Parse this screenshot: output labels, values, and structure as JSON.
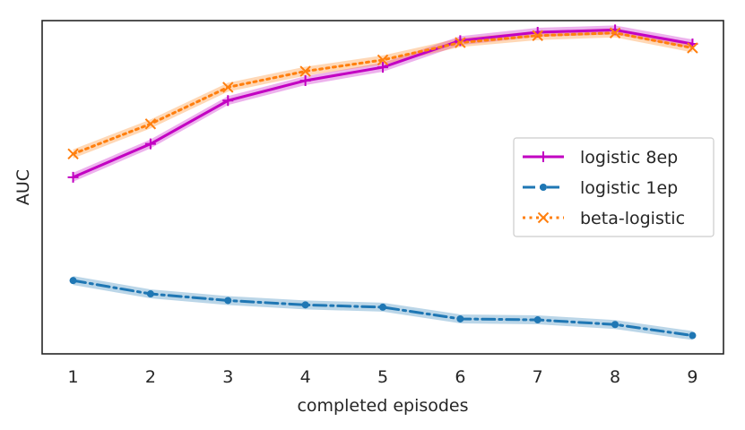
{
  "chart_data": {
    "type": "line",
    "title": "",
    "xlabel": "completed episodes",
    "ylabel": "AUC",
    "x": [
      1,
      2,
      3,
      4,
      5,
      6,
      7,
      8,
      9
    ],
    "xlim": [
      0.6,
      9.4
    ],
    "ylim": [
      0,
      1
    ],
    "y_ticks_shown": false,
    "grid": false,
    "legend_position": "center-right",
    "series": [
      {
        "name": "logistic 8ep",
        "color": "#c200c2",
        "linestyle": "solid",
        "marker": "plus",
        "values": [
          0.53,
          0.63,
          0.76,
          0.82,
          0.86,
          0.94,
          0.965,
          0.972,
          0.93
        ]
      },
      {
        "name": "logistic 1ep",
        "color": "#1f77b4",
        "linestyle": "dashdot",
        "marker": "dot",
        "values": [
          0.22,
          0.18,
          0.16,
          0.147,
          0.14,
          0.105,
          0.102,
          0.088,
          0.055
        ]
      },
      {
        "name": "beta-logistic",
        "color": "#ff7f0e",
        "linestyle": "dotted",
        "marker": "x",
        "values": [
          0.6,
          0.69,
          0.8,
          0.848,
          0.882,
          0.934,
          0.955,
          0.963,
          0.918
        ]
      }
    ]
  }
}
